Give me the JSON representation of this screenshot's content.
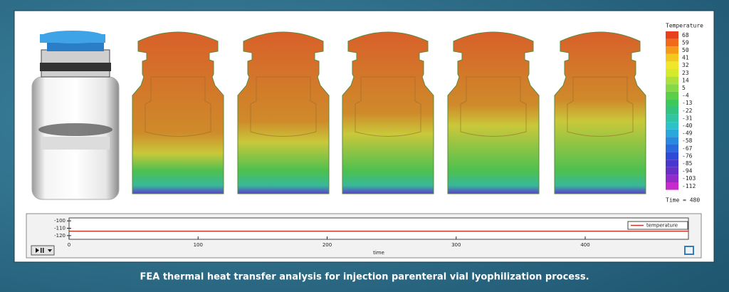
{
  "color_scale": {
    "title": "Temperature",
    "ticks": [
      68,
      59,
      50,
      41,
      32,
      23,
      14,
      5,
      -4,
      -13,
      -22,
      -31,
      -40,
      -49,
      -58,
      -67,
      -76,
      -85,
      -94,
      -103,
      -112
    ],
    "colors": [
      "#e8401c",
      "#f06a1a",
      "#f59a1a",
      "#f5c81e",
      "#f0e62a",
      "#d4ea2a",
      "#aee03a",
      "#86d845",
      "#5ccf4a",
      "#3ec85c",
      "#32c47e",
      "#2ec4a4",
      "#2cc2c8",
      "#2aa8dc",
      "#2a88e0",
      "#2a68dc",
      "#2e4ad6",
      "#4a36cf",
      "#6a2ec8",
      "#922cc8",
      "#c62ccc"
    ]
  },
  "time_label": "Time = 480",
  "chart_data": {
    "type": "line",
    "xlabel": "time",
    "x": [
      0,
      480
    ],
    "series": [
      {
        "name": "temperature",
        "color": "#c0392b",
        "values": [
          -114,
          -114
        ]
      }
    ],
    "xlim": [
      0,
      480
    ],
    "xticks": [
      0,
      100,
      200,
      300,
      400
    ],
    "ylim": [
      -125,
      -96
    ],
    "yticks": [
      -100,
      -110,
      -120
    ]
  },
  "caption": "FEA thermal heat transfer analysis for injection parenteral vial lyophilization process."
}
